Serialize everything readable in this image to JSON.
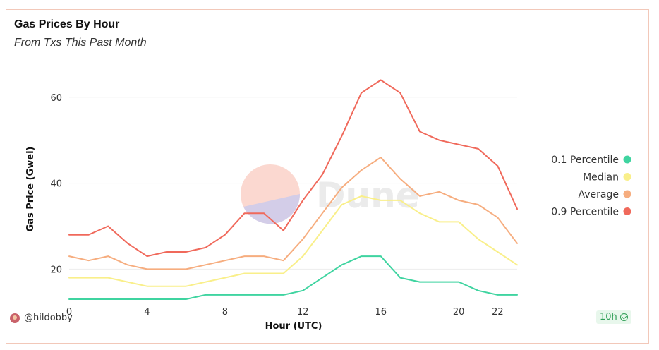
{
  "chart_data": {
    "type": "line",
    "title": "Gas Prices By Hour",
    "subtitle": "From Txs This Past Month",
    "xlabel": "Hour (UTC)",
    "ylabel": "Gas Price (Gwei)",
    "x": [
      0,
      1,
      2,
      3,
      4,
      5,
      6,
      7,
      8,
      9,
      10,
      11,
      12,
      13,
      14,
      15,
      16,
      17,
      18,
      19,
      20,
      21,
      22,
      23
    ],
    "x_ticks": [
      0,
      4,
      8,
      12,
      16,
      20,
      22
    ],
    "y_ticks": [
      20,
      40,
      60
    ],
    "xlim": [
      0,
      23
    ],
    "ylim": [
      13,
      69
    ],
    "grid": true,
    "legend_position": "right",
    "series": [
      {
        "name": "0.1 Percentile",
        "color": "#3fd4a0",
        "values": [
          13,
          13,
          13,
          13,
          13,
          13,
          13,
          14,
          14,
          14,
          14,
          14,
          15,
          18,
          21,
          23,
          23,
          18,
          17,
          17,
          17,
          15,
          14,
          14
        ]
      },
      {
        "name": "Median",
        "color": "#f9ef8a",
        "values": [
          18,
          18,
          18,
          17,
          16,
          16,
          16,
          17,
          18,
          19,
          19,
          19,
          23,
          29,
          35,
          37,
          36,
          36,
          33,
          31,
          31,
          27,
          24,
          21
        ]
      },
      {
        "name": "Average",
        "color": "#f6ad7f",
        "values": [
          23,
          22,
          23,
          21,
          20,
          20,
          20,
          21,
          22,
          23,
          23,
          22,
          27,
          33,
          39,
          43,
          46,
          41,
          37,
          38,
          36,
          35,
          32,
          26
        ]
      },
      {
        "name": "0.9 Percentile",
        "color": "#f0695b",
        "values": [
          28,
          28,
          30,
          26,
          23,
          24,
          24,
          25,
          28,
          33,
          33,
          29,
          36,
          42,
          51,
          61,
          64,
          61,
          52,
          50,
          49,
          48,
          44,
          34
        ]
      }
    ]
  },
  "footer": {
    "username": "@hildobby",
    "refresh_badge": "10h"
  },
  "watermark": "Dune"
}
